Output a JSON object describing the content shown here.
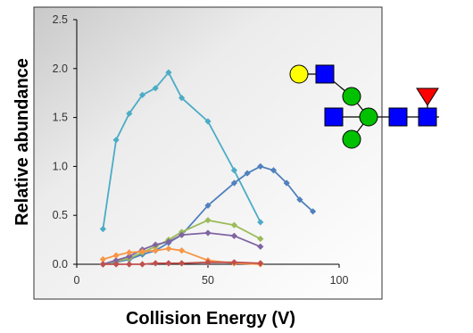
{
  "chart_data": {
    "type": "line",
    "xlabel": "Collision Energy (V)",
    "ylabel": "Relative abundance",
    "xlim": [
      0,
      100
    ],
    "ylim": [
      0,
      2.5
    ],
    "xticks": [
      0,
      50,
      100
    ],
    "yticks": [
      0.0,
      0.5,
      1.0,
      1.5,
      2.0,
      2.5
    ],
    "xtick_labels": [
      "0",
      "50",
      "100"
    ],
    "ytick_labels": [
      "0.0",
      "0.5",
      "1.0",
      "1.5",
      "2.0",
      "2.5"
    ],
    "grid": false,
    "legend": "none",
    "marker": "diamond",
    "series": [
      {
        "color": "#4bacc6",
        "x": [
          10,
          15,
          20,
          25,
          30,
          35,
          40,
          50,
          60,
          70
        ],
        "y": [
          0.36,
          1.27,
          1.54,
          1.73,
          1.8,
          1.96,
          1.7,
          1.46,
          0.96,
          0.43
        ]
      },
      {
        "color": "#4f81bd",
        "x": [
          10,
          15,
          20,
          25,
          30,
          35,
          40,
          50,
          60,
          65,
          70,
          75,
          80,
          85,
          90
        ],
        "y": [
          0.0,
          0.02,
          0.05,
          0.1,
          0.14,
          0.22,
          0.3,
          0.6,
          0.83,
          0.93,
          1.0,
          0.96,
          0.83,
          0.66,
          0.54
        ]
      },
      {
        "color": "#9bbb59",
        "x": [
          10,
          15,
          20,
          25,
          30,
          35,
          40,
          50,
          60,
          70
        ],
        "y": [
          0.0,
          0.03,
          0.06,
          0.12,
          0.18,
          0.25,
          0.33,
          0.45,
          0.4,
          0.26
        ]
      },
      {
        "color": "#8064a2",
        "x": [
          10,
          15,
          20,
          25,
          30,
          35,
          40,
          50,
          60,
          70
        ],
        "y": [
          0.0,
          0.04,
          0.08,
          0.15,
          0.2,
          0.23,
          0.3,
          0.32,
          0.29,
          0.18
        ]
      },
      {
        "color": "#f79646",
        "x": [
          10,
          15,
          20,
          25,
          30,
          35,
          40,
          50,
          60,
          70
        ],
        "y": [
          0.05,
          0.09,
          0.12,
          0.13,
          0.14,
          0.16,
          0.14,
          0.04,
          0.01,
          0.0
        ]
      },
      {
        "color": "#c0504d",
        "x": [
          10,
          15,
          20,
          25,
          30,
          35,
          40,
          50,
          60,
          70
        ],
        "y": [
          0.0,
          0.0,
          0.0,
          0.0,
          0.01,
          0.01,
          0.01,
          0.02,
          0.02,
          0.01
        ]
      }
    ]
  },
  "glycan_structure": {
    "symbols": [
      {
        "name": "galactose",
        "shape": "circle",
        "color": "#ffff00"
      },
      {
        "name": "n-acetylglucosamine",
        "shape": "square",
        "color": "#0000ff"
      },
      {
        "name": "mannose",
        "shape": "circle",
        "color": "#00c000"
      },
      {
        "name": "fucose",
        "shape": "triangle",
        "color": "#ff0000"
      }
    ]
  }
}
